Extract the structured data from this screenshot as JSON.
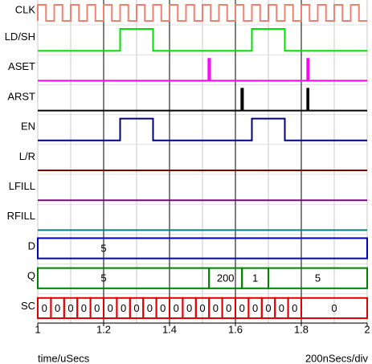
{
  "diagram": {
    "xlim": [
      1,
      2
    ],
    "xticks": [
      1,
      1.2,
      1.4,
      1.6,
      1.8,
      2
    ],
    "x_label": "time/uSecs",
    "scale_label": "200nSecs/div",
    "signals": [
      {
        "name": "CLK",
        "color": "#f08070",
        "kind": "clock",
        "start": 1.0,
        "period": 0.05
      },
      {
        "name": "LD/SH",
        "color": "#00e000",
        "kind": "digital",
        "high": [
          [
            1.25,
            1.35
          ],
          [
            1.65,
            1.75
          ]
        ]
      },
      {
        "name": "ASET",
        "color": "#ff00ff",
        "kind": "digital",
        "high": [
          [
            1.518,
            1.523
          ],
          [
            1.818,
            1.822
          ]
        ]
      },
      {
        "name": "ARST",
        "color": "#000000",
        "kind": "digital",
        "high": [
          [
            1.618,
            1.623
          ],
          [
            1.818,
            1.822
          ]
        ]
      },
      {
        "name": "EN",
        "color": "#000080",
        "kind": "digital",
        "high": [
          [
            1.25,
            1.35
          ],
          [
            1.65,
            1.75
          ]
        ]
      },
      {
        "name": "L/R",
        "color": "#800000",
        "kind": "digital",
        "high": []
      },
      {
        "name": "LFILL",
        "color": "#800080",
        "kind": "digital",
        "high": []
      },
      {
        "name": "RFILL",
        "color": "#008080",
        "kind": "digital",
        "high": []
      },
      {
        "name": "D",
        "color": "#0000c0",
        "kind": "bus",
        "segments": [
          {
            "start": 1,
            "label": "5"
          }
        ]
      },
      {
        "name": "Q",
        "color": "#008000",
        "kind": "bus",
        "segments": [
          {
            "start": 1,
            "label": "5"
          },
          {
            "start": 1.52,
            "label": "200"
          },
          {
            "start": 1.62,
            "label": "1"
          },
          {
            "start": 1.7,
            "label": "5"
          }
        ]
      },
      {
        "name": "SC",
        "color": "#e00000",
        "kind": "bus",
        "segments": [
          {
            "start": 1,
            "label": "0"
          },
          {
            "start": 1.04,
            "label": "0"
          },
          {
            "start": 1.08,
            "label": "0"
          },
          {
            "start": 1.12,
            "label": "0"
          },
          {
            "start": 1.16,
            "label": "0"
          },
          {
            "start": 1.2,
            "label": "0"
          },
          {
            "start": 1.24,
            "label": "0"
          },
          {
            "start": 1.28,
            "label": "0"
          },
          {
            "start": 1.32,
            "label": "0"
          },
          {
            "start": 1.36,
            "label": "0"
          },
          {
            "start": 1.4,
            "label": "0"
          },
          {
            "start": 1.44,
            "label": "0"
          },
          {
            "start": 1.48,
            "label": "0"
          },
          {
            "start": 1.52,
            "label": "0"
          },
          {
            "start": 1.56,
            "label": "0"
          },
          {
            "start": 1.6,
            "label": "0"
          },
          {
            "start": 1.64,
            "label": "0"
          },
          {
            "start": 1.68,
            "label": "0"
          },
          {
            "start": 1.72,
            "label": "0"
          },
          {
            "start": 1.76,
            "label": "0"
          },
          {
            "start": 1.8,
            "label": "0"
          }
        ]
      }
    ]
  }
}
